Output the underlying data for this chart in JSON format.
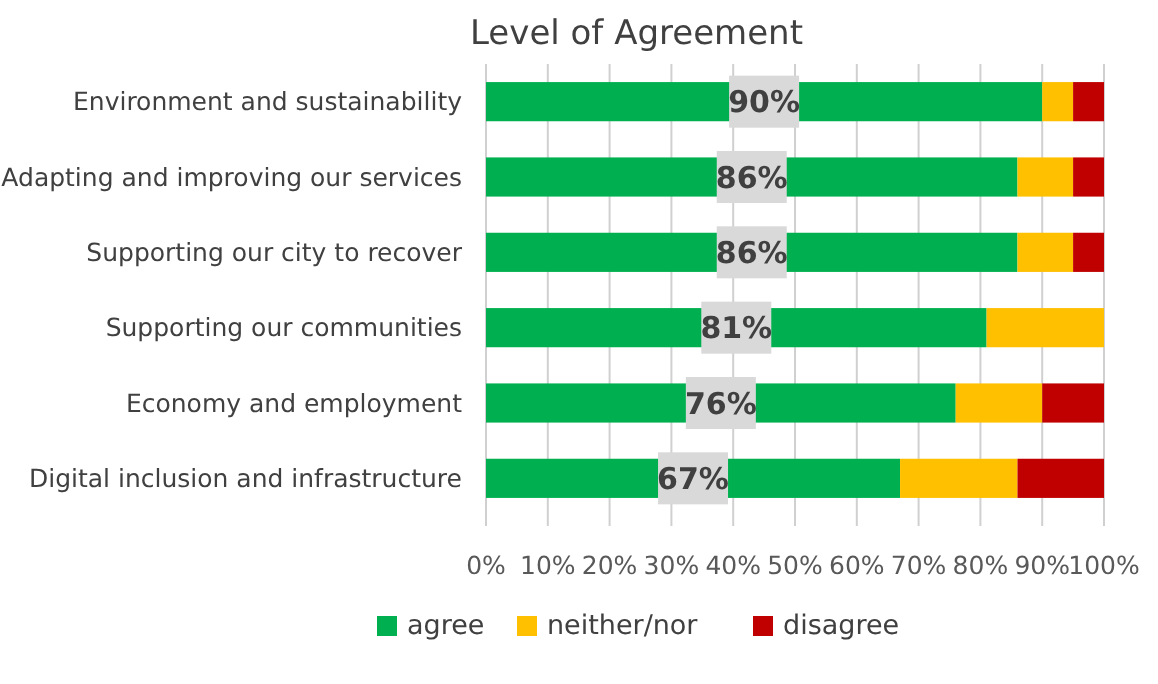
{
  "chart_data": {
    "type": "bar",
    "orientation": "horizontal",
    "stacked": true,
    "title": "Level of Agreement",
    "categories": [
      "Environment and sustainability",
      "Adapting and improving our services ",
      "Supporting our city to recover",
      "Supporting our communities",
      "Economy and employment ",
      "Digital inclusion and infrastructure"
    ],
    "series": [
      {
        "name": "agree",
        "color": "#00b050",
        "values": [
          90,
          86,
          86,
          81,
          76,
          67
        ],
        "value_labels": [
          "90%",
          "86%",
          "86%",
          "81%",
          "76%",
          "67%"
        ]
      },
      {
        "name": "neither/nor",
        "color": "#ffc000",
        "values": [
          5,
          9,
          9,
          19,
          14,
          19
        ]
      },
      {
        "name": "disagree",
        "color": "#c00000",
        "values": [
          5,
          5,
          5,
          0,
          10,
          14
        ]
      }
    ],
    "xlim": [
      0,
      100
    ],
    "xticks": [
      {
        "value": 0,
        "label": "0%"
      },
      {
        "value": 10,
        "label": "10%"
      },
      {
        "value": 20,
        "label": "20%"
      },
      {
        "value": 30,
        "label": "30%"
      },
      {
        "value": 40,
        "label": "40%"
      },
      {
        "value": 50,
        "label": "50%"
      },
      {
        "value": 60,
        "label": "60%"
      },
      {
        "value": 70,
        "label": "70%"
      },
      {
        "value": 80,
        "label": "80%"
      },
      {
        "value": 90,
        "label": "90%"
      },
      {
        "value": 100,
        "label": "100%"
      }
    ],
    "grid": "x",
    "legend": "bottom"
  }
}
